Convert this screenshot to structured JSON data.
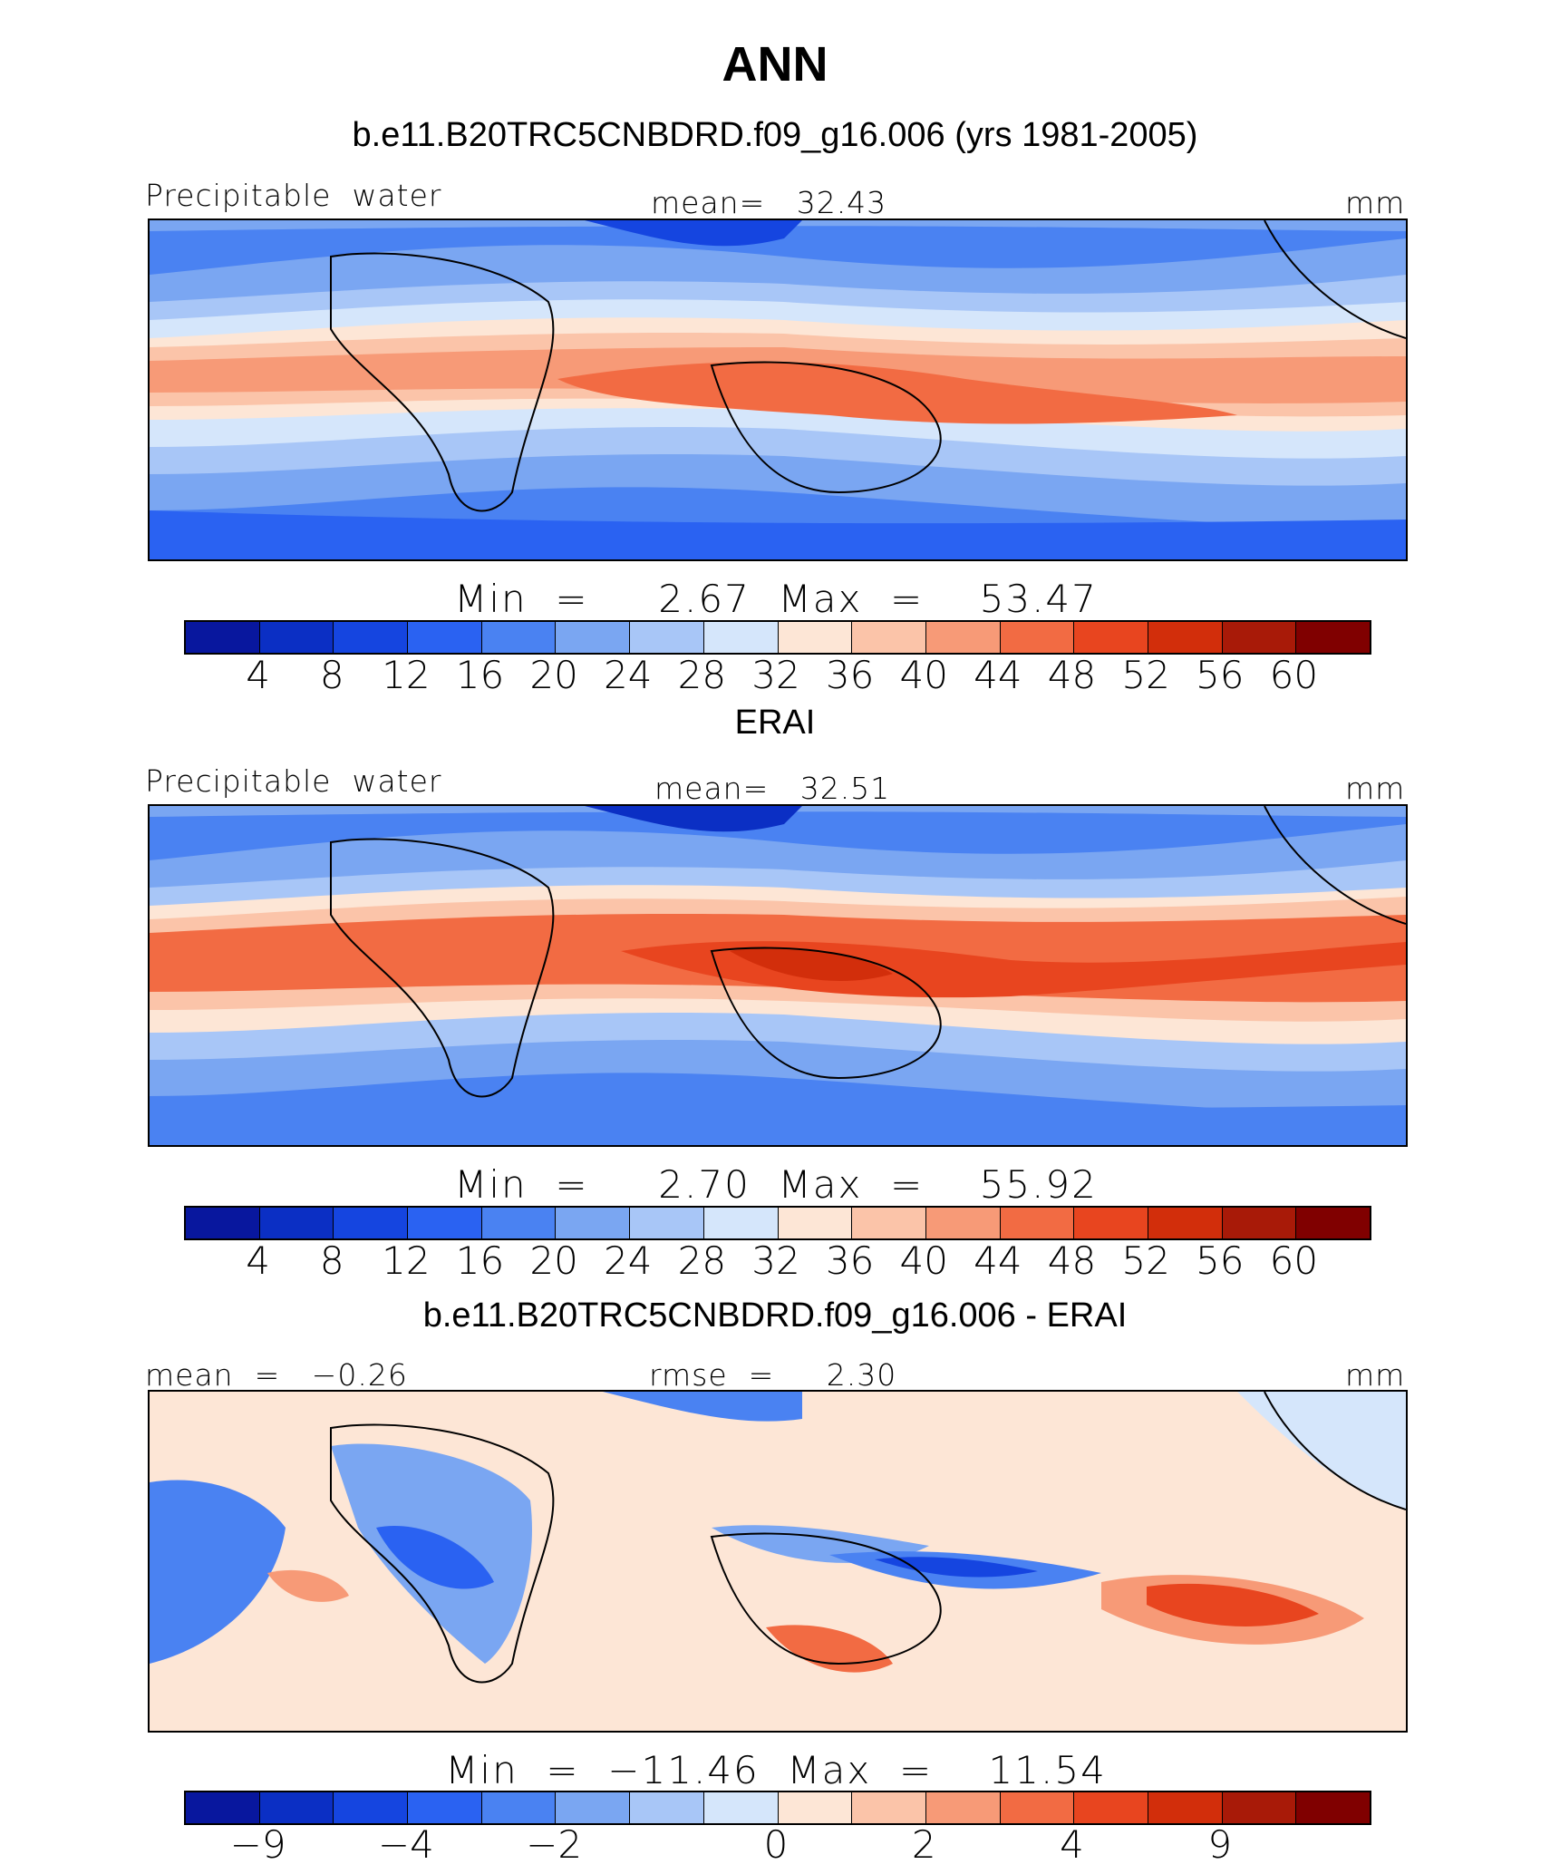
{
  "title": "ANN",
  "colors": [
    "#08179e",
    "#0b2fc4",
    "#1545e0",
    "#2a62f2",
    "#4a82f2",
    "#7aa6f2",
    "#a8c6f7",
    "#d5e6fb",
    "#fde6d6",
    "#fbc4a9",
    "#f79a77",
    "#f26b43",
    "#e8451f",
    "#d22e0b",
    "#a81a08",
    "#800000"
  ],
  "panels": [
    {
      "subtitle": "b.e11.B20TRC5CNBDRD.f09_g16.006 (yrs 1981-2005)",
      "left": "Precipitable  water",
      "center": "mean=   32.43",
      "right": "mm",
      "minmax": "Min  =     2.67  Max  =    53.47",
      "ticks": [
        "4",
        "8",
        "12",
        "16",
        "20",
        "24",
        "28",
        "32",
        "36",
        "40",
        "44",
        "48",
        "52",
        "56",
        "60"
      ]
    },
    {
      "subtitle": "ERAI",
      "left": "Precipitable  water",
      "center": "mean=   32.51",
      "right": "mm",
      "minmax": "Min  =     2.70  Max  =    55.92",
      "ticks": [
        "4",
        "8",
        "12",
        "16",
        "20",
        "24",
        "28",
        "32",
        "36",
        "40",
        "44",
        "48",
        "52",
        "56",
        "60"
      ]
    },
    {
      "subtitle": "b.e11.B20TRC5CNBDRD.f09_g16.006 - ERAI",
      "left": "mean  =   −0.26",
      "center": "rmse  =     2.30",
      "right": "mm",
      "minmax": "Min  =  −11.46  Max  =    11.54",
      "ticks": [
        "−9",
        "−4",
        "−2",
        "0",
        "2",
        "4",
        "9"
      ]
    }
  ]
}
